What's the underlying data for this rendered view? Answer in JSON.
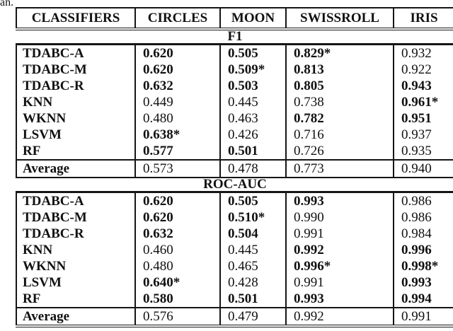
{
  "caption_fragment": "an.",
  "table": {
    "columns": [
      "CLASSIFIERS",
      "CIRCLES",
      "MOON",
      "SWISSROLL",
      "IRIS"
    ],
    "sections": [
      {
        "title": "F1",
        "rows": [
          {
            "name": "TDABC-A",
            "values": [
              "0.620",
              "0.505",
              "0.829*",
              "0.932"
            ],
            "bold": [
              true,
              true,
              true,
              false
            ]
          },
          {
            "name": "TDABC-M",
            "values": [
              "0.620",
              "0.509*",
              "0.813",
              "0.922"
            ],
            "bold": [
              true,
              true,
              true,
              false
            ]
          },
          {
            "name": "TDABC-R",
            "values": [
              "0.632",
              "0.503",
              "0.805",
              "0.943"
            ],
            "bold": [
              true,
              true,
              true,
              true
            ]
          },
          {
            "name": "KNN",
            "values": [
              "0.449",
              "0.445",
              "0.738",
              "0.961*"
            ],
            "bold": [
              false,
              false,
              false,
              true
            ]
          },
          {
            "name": "WKNN",
            "values": [
              "0.480",
              "0.463",
              "0.782",
              "0.951"
            ],
            "bold": [
              false,
              false,
              true,
              true
            ]
          },
          {
            "name": "LSVM",
            "values": [
              "0.638*",
              "0.426",
              "0.716",
              "0.937"
            ],
            "bold": [
              true,
              false,
              false,
              false
            ]
          },
          {
            "name": "RF",
            "values": [
              "0.577",
              "0.501",
              "0.726",
              "0.935"
            ],
            "bold": [
              true,
              true,
              false,
              false
            ]
          },
          {
            "name": "Average",
            "values": [
              "0.573",
              "0.478",
              "0.773",
              "0.940"
            ],
            "bold": [
              false,
              false,
              false,
              false
            ],
            "is_average": true
          }
        ]
      },
      {
        "title": "ROC-AUC",
        "rows": [
          {
            "name": "TDABC-A",
            "values": [
              "0.620",
              "0.505",
              "0.993",
              "0.986"
            ],
            "bold": [
              true,
              true,
              true,
              false
            ]
          },
          {
            "name": "TDABC-M",
            "values": [
              "0.620",
              "0.510*",
              "0.990",
              "0.986"
            ],
            "bold": [
              true,
              true,
              false,
              false
            ]
          },
          {
            "name": "TDABC-R",
            "values": [
              "0.632",
              "0.504",
              "0.991",
              "0.984"
            ],
            "bold": [
              true,
              true,
              false,
              false
            ]
          },
          {
            "name": "KNN",
            "values": [
              "0.460",
              "0.445",
              "0.992",
              "0.996"
            ],
            "bold": [
              false,
              false,
              true,
              true
            ]
          },
          {
            "name": "WKNN",
            "values": [
              "0.480",
              "0.465",
              "0.996*",
              "0.998*"
            ],
            "bold": [
              false,
              false,
              true,
              true
            ]
          },
          {
            "name": "LSVM",
            "values": [
              "0.640*",
              "0.428",
              "0.991",
              "0.993"
            ],
            "bold": [
              true,
              false,
              false,
              true
            ]
          },
          {
            "name": "RF",
            "values": [
              "0.580",
              "0.501",
              "0.993",
              "0.994"
            ],
            "bold": [
              true,
              true,
              true,
              true
            ]
          },
          {
            "name": "Average",
            "values": [
              "0.576",
              "0.479",
              "0.992",
              "0.991"
            ],
            "bold": [
              false,
              false,
              false,
              false
            ],
            "is_average": true
          }
        ]
      }
    ]
  }
}
